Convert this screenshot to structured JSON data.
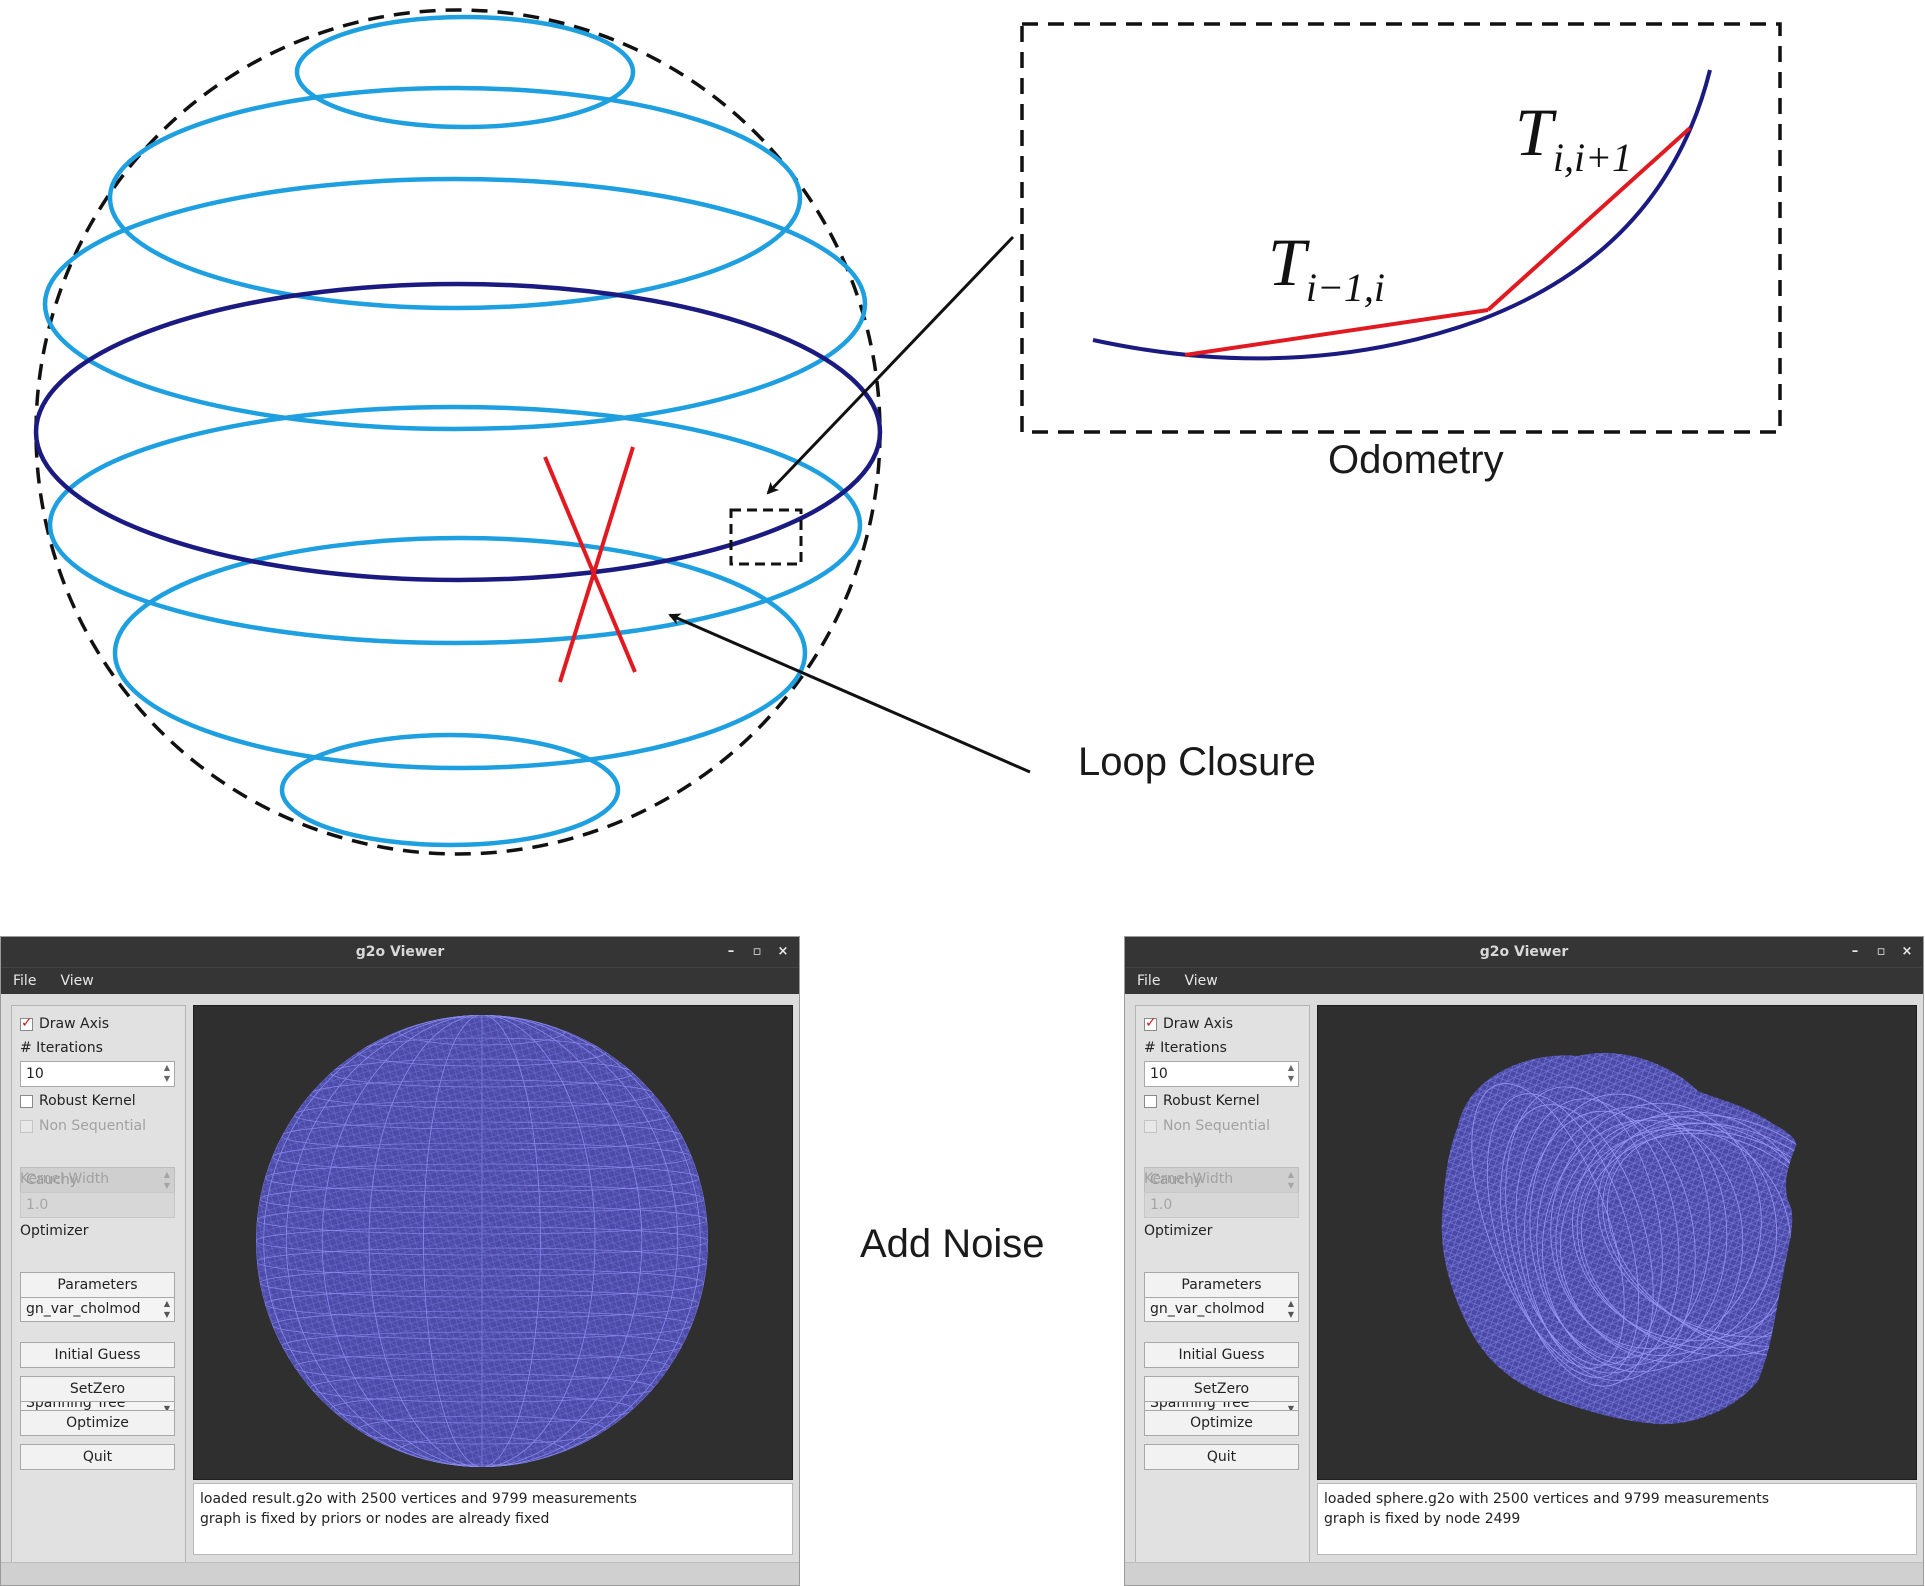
{
  "diagram": {
    "odometry_label": "Odometry",
    "loop_closure_label": "Loop Closure",
    "t_prev": {
      "main": "T",
      "sub": "i−1,i"
    },
    "t_next": {
      "main": "T",
      "sub": "i,i+1"
    },
    "colors": {
      "latitude": "#1e9fe0",
      "equator": "#1a1a80",
      "constraint": "#e01a20",
      "dashed": "#111111"
    }
  },
  "middle_label": "Add Noise",
  "windows": [
    {
      "title": "g2o Viewer",
      "menu": [
        "File",
        "View"
      ],
      "draw_axis": "Draw Axis",
      "iterations_label": "# Iterations",
      "iterations_value": "10",
      "robust_kernel": "Robust Kernel",
      "non_sequential": "Non Sequential",
      "kernel_select": "Cauchy",
      "kernel_width_label": "Kernel Width",
      "kernel_width_value": "1.0",
      "optimizer_label": "Optimizer",
      "optimizer_value": "gn_var_cholmod",
      "parameters_btn": "Parameters",
      "init_select": "Spanning Tree",
      "initial_guess_btn": "Initial Guess",
      "setzero_btn": "SetZero",
      "optimize_btn": "Optimize",
      "quit_btn": "Quit",
      "log": [
        "loaded result.g2o with 2500 vertices and 9799 measurements",
        "graph is fixed by priors or nodes are already fixed"
      ],
      "mesh_color": "#6a6ad2"
    },
    {
      "title": "g2o Viewer",
      "menu": [
        "File",
        "View"
      ],
      "draw_axis": "Draw Axis",
      "iterations_label": "# Iterations",
      "iterations_value": "10",
      "robust_kernel": "Robust Kernel",
      "non_sequential": "Non Sequential",
      "kernel_select": "Cauchy",
      "kernel_width_label": "Kernel Width",
      "kernel_width_value": "1.0",
      "optimizer_label": "Optimizer",
      "optimizer_value": "gn_var_cholmod",
      "parameters_btn": "Parameters",
      "init_select": "Spanning Tree",
      "initial_guess_btn": "Initial Guess",
      "setzero_btn": "SetZero",
      "optimize_btn": "Optimize",
      "quit_btn": "Quit",
      "log": [
        "loaded sphere.g2o with 2500 vertices and 9799 measurements",
        "graph is fixed by node 2499"
      ],
      "mesh_color": "#6a6ad2"
    }
  ]
}
